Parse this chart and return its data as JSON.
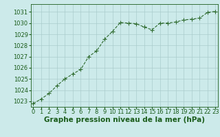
{
  "x": [
    0,
    1,
    2,
    3,
    4,
    5,
    6,
    7,
    8,
    9,
    10,
    11,
    12,
    13,
    14,
    15,
    16,
    17,
    18,
    19,
    20,
    21,
    22,
    23
  ],
  "y": [
    1022.8,
    1023.2,
    1023.7,
    1024.4,
    1025.0,
    1025.45,
    1025.85,
    1027.0,
    1027.5,
    1028.55,
    1029.25,
    1030.05,
    1030.0,
    1029.95,
    1029.65,
    1029.4,
    1030.0,
    1030.0,
    1030.1,
    1030.28,
    1030.35,
    1030.45,
    1030.95,
    1031.05
  ],
  "line_color": "#2d6a2d",
  "marker": "P",
  "marker_size": 2.5,
  "bg_color": "#cceaea",
  "grid_color": "#aacccc",
  "xlabel": "Graphe pression niveau de la mer (hPa)",
  "xlabel_color": "#1a5c1a",
  "xlabel_fontsize": 7.5,
  "tick_color": "#1a5c1a",
  "tick_fontsize": 6.0,
  "ylim": [
    1022.5,
    1031.7
  ],
  "yticks": [
    1023,
    1024,
    1025,
    1026,
    1027,
    1028,
    1029,
    1030,
    1031
  ],
  "xlim": [
    -0.3,
    23.3
  ],
  "xticks": [
    0,
    1,
    2,
    3,
    4,
    5,
    6,
    7,
    8,
    9,
    10,
    11,
    12,
    13,
    14,
    15,
    16,
    17,
    18,
    19,
    20,
    21,
    22,
    23
  ]
}
